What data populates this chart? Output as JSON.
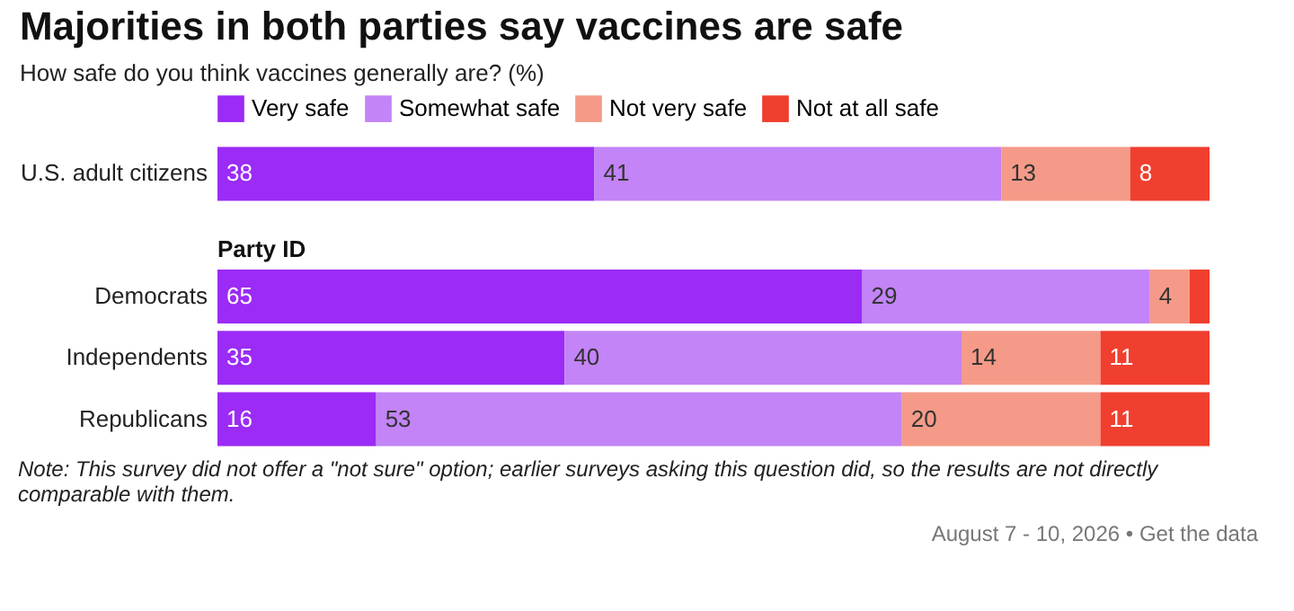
{
  "chart_data": {
    "type": "bar",
    "orientation": "horizontal",
    "stacked": true,
    "title": "Majorities in both parties say vaccines are safe",
    "subtitle": "How safe do you think vaccines generally are? (%)",
    "categories": [
      "U.S. adult citizens",
      null,
      "Democrats",
      "Independents",
      "Republicans"
    ],
    "series": [
      {
        "name": "Very safe",
        "color": "#9b2bf5",
        "values": [
          38,
          null,
          65,
          35,
          16
        ],
        "value_labels": [
          "38",
          null,
          "65",
          "35",
          "16"
        ]
      },
      {
        "name": "Somewhat safe",
        "color": "#c384f7",
        "values": [
          41,
          null,
          29,
          40,
          53
        ],
        "value_labels": [
          "41",
          null,
          "29",
          "40",
          "53"
        ]
      },
      {
        "name": "Not very safe",
        "color": "#f59a88",
        "values": [
          13,
          null,
          4,
          14,
          20
        ],
        "value_labels": [
          "13",
          null,
          "4",
          "14",
          "20"
        ]
      },
      {
        "name": "Not at all safe",
        "color": "#f03f2f",
        "values": [
          8,
          null,
          2,
          11,
          11
        ],
        "value_labels": [
          "8",
          null,
          null,
          "11",
          "11"
        ]
      }
    ],
    "legend": "top",
    "tick_labels": "y",
    "annotations": [
      "Party ID",
      "Note: This survey did not offer a \"not sure\" option; earlier surveys asking this question did, so the results are not directly comparable with them.",
      "August 7 - 10, 2026 • Get the data"
    ]
  }
}
